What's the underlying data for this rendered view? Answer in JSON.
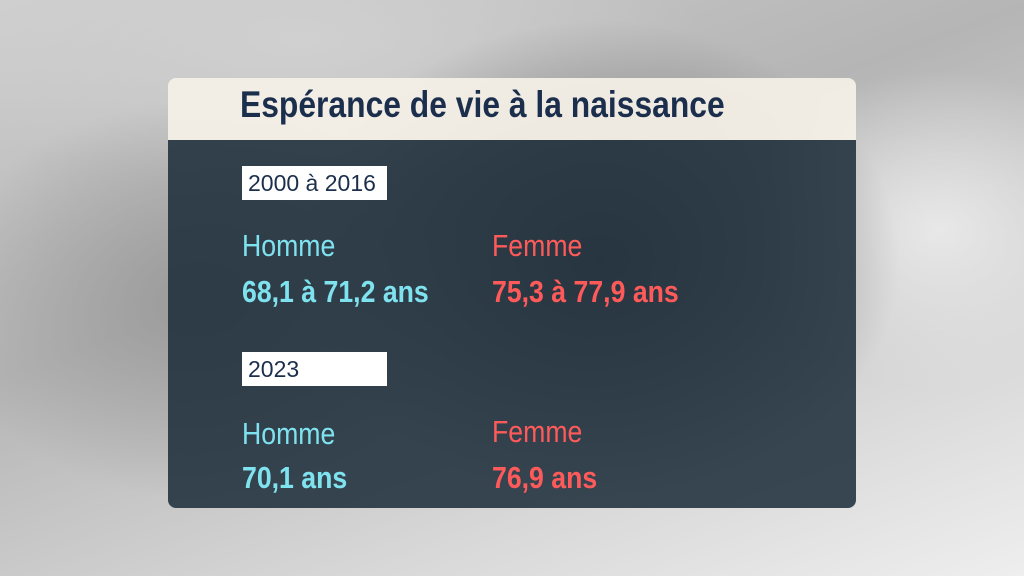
{
  "title": "Espérance de vie à la naissance",
  "sections": [
    {
      "period": "2000 à 2016",
      "homme": {
        "label": "Homme",
        "value": "68,1 à 71,2 ans"
      },
      "femme": {
        "label": "Femme",
        "value": "75,3 à 77,9 ans"
      }
    },
    {
      "period": "2023",
      "homme": {
        "label": "Homme",
        "value": "70,1 ans"
      },
      "femme": {
        "label": "Femme",
        "value": "76,9 ans"
      }
    }
  ]
}
